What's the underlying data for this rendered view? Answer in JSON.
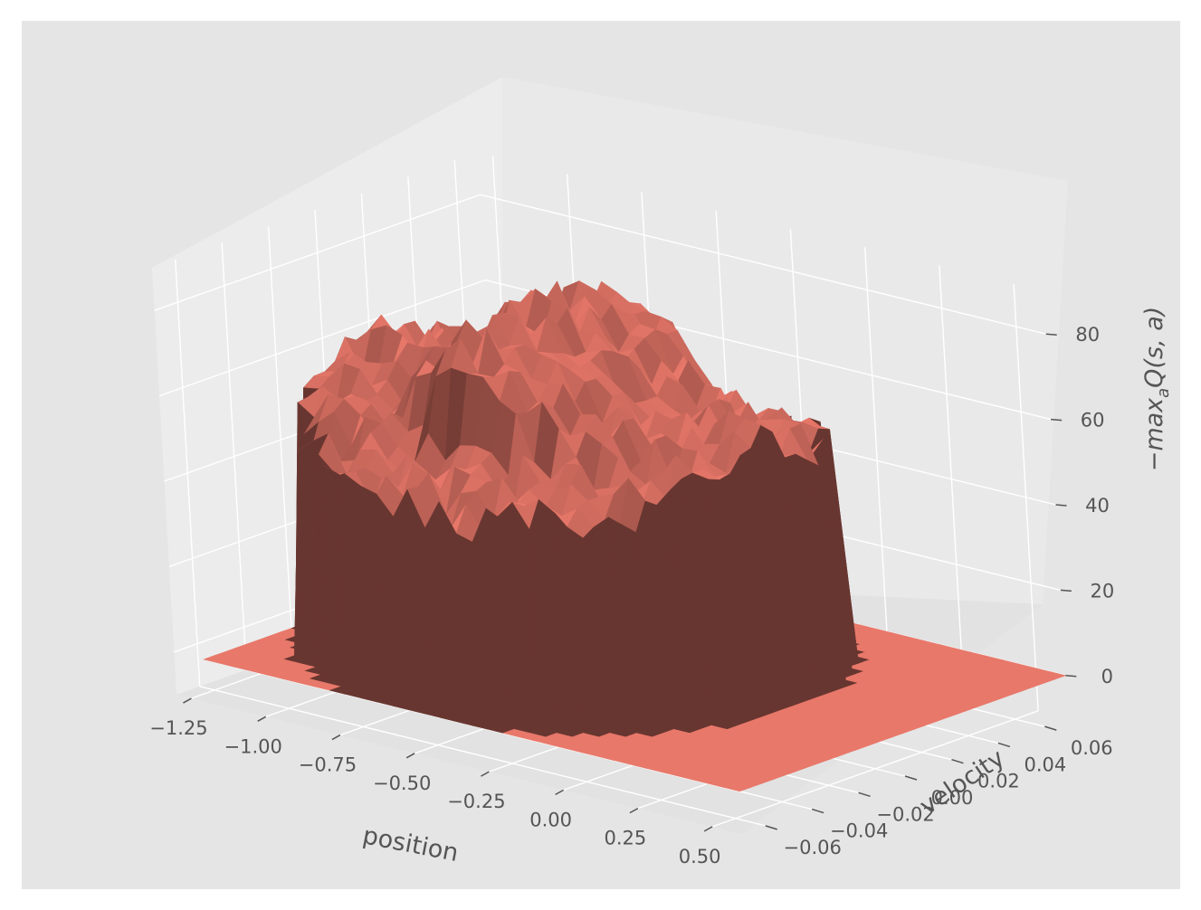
{
  "chart_data": {
    "type": "surface3d",
    "title": "",
    "xlabel": "position",
    "ylabel": "velocity",
    "zlabel_main": "−max",
    "zlabel_sub": "a",
    "zlabel_tail": "Q(s, a)",
    "x_ticks": [
      "−1.25",
      "−1.00",
      "−0.75",
      "−0.50",
      "−0.25",
      "0.00",
      "0.25",
      "0.50"
    ],
    "y_ticks": [
      "−0.06",
      "−0.04",
      "−0.02",
      "0.00",
      "0.02",
      "0.04",
      "0.06"
    ],
    "z_ticks": [
      "0",
      "20",
      "40",
      "60",
      "80"
    ],
    "xlim": [
      -1.3,
      0.6
    ],
    "ylim": [
      -0.07,
      0.07
    ],
    "zlim": [
      -10,
      90
    ],
    "surface_color": "#e8786a",
    "surface_shadow_color": "#8a4a43",
    "pane_color": "#e8e8e8",
    "background_color": "#e5e5e5",
    "description_values": {
      "floor_value": 0,
      "peak_value": 80,
      "ridge_value": 45
    }
  }
}
